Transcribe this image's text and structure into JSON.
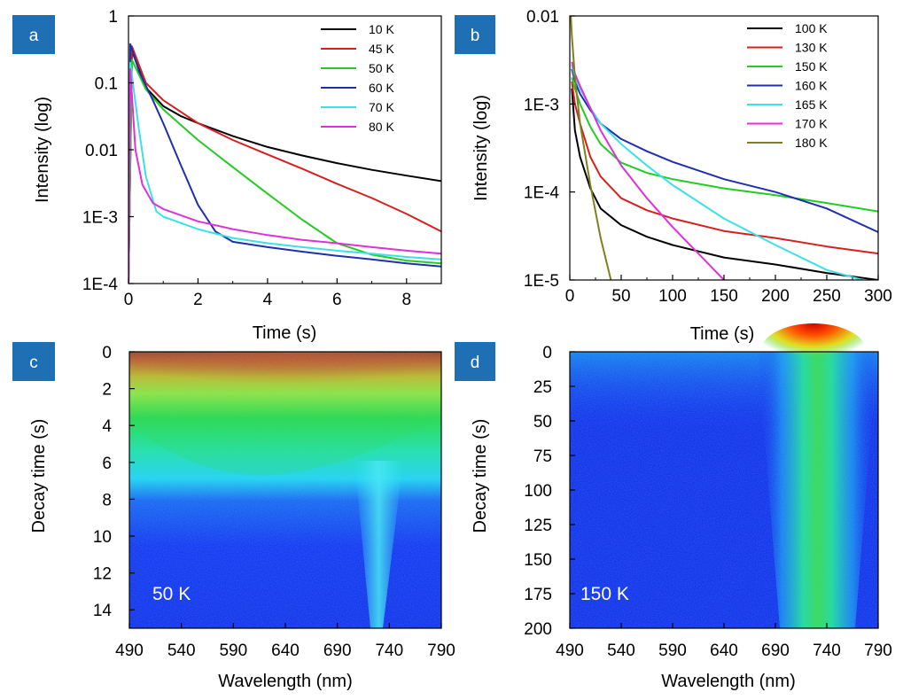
{
  "colors": {
    "badge": "#1f6fb5",
    "axis": "#000000"
  },
  "chart_data": [
    {
      "panel": "a",
      "type": "line",
      "xlabel": "Time (s)",
      "ylabel": "Intensity (log)",
      "xlim": [
        0,
        9
      ],
      "ylim": [
        0.0001,
        1
      ],
      "yscale": "log",
      "x_ticks": [
        "0",
        "2",
        "4",
        "6",
        "8"
      ],
      "y_ticks": [
        "1E-4",
        "1E-3",
        "0.01",
        "0.1",
        "1"
      ],
      "legend_position": "top-right",
      "series": [
        {
          "name": "10 K",
          "color": "#000000",
          "x": [
            0,
            0.1,
            0.5,
            1,
            1.5,
            2,
            3,
            4,
            5,
            6,
            7,
            8,
            9
          ],
          "y": [
            0.0001,
            0.3,
            0.085,
            0.045,
            0.032,
            0.025,
            0.016,
            0.011,
            0.0082,
            0.0063,
            0.005,
            0.0041,
            0.0034
          ]
        },
        {
          "name": "45 K",
          "color": "#d62020",
          "x": [
            0,
            0.1,
            0.5,
            1,
            2,
            3,
            4,
            5,
            6,
            7,
            8,
            9
          ],
          "y": [
            0.0001,
            0.35,
            0.1,
            0.055,
            0.025,
            0.014,
            0.0085,
            0.0052,
            0.0031,
            0.0019,
            0.0011,
            0.0006
          ]
        },
        {
          "name": "50 K",
          "color": "#22cc22",
          "x": [
            0,
            0.1,
            0.5,
            1,
            2,
            3,
            4,
            5,
            6,
            7,
            8,
            9
          ],
          "y": [
            0.0001,
            0.22,
            0.08,
            0.04,
            0.014,
            0.0055,
            0.0022,
            0.0009,
            0.0004,
            0.00027,
            0.00022,
            0.0002
          ]
        },
        {
          "name": "60 K",
          "color": "#1f2fb0",
          "x": [
            0,
            0.05,
            0.3,
            0.7,
            1,
            1.5,
            2,
            2.5,
            3,
            4,
            5,
            6,
            7,
            8,
            9
          ],
          "y": [
            0.0001,
            0.38,
            0.15,
            0.055,
            0.025,
            0.006,
            0.0015,
            0.0006,
            0.00042,
            0.00035,
            0.0003,
            0.00026,
            0.00023,
            0.0002,
            0.00018
          ]
        },
        {
          "name": "70 K",
          "color": "#3be0e8",
          "x": [
            0,
            0.05,
            0.3,
            0.5,
            0.8,
            1,
            2,
            3,
            4,
            5,
            6,
            7,
            8,
            9
          ],
          "y": [
            0.0001,
            0.2,
            0.02,
            0.004,
            0.0012,
            0.001,
            0.00065,
            0.00048,
            0.0004,
            0.00035,
            0.00031,
            0.00028,
            0.00025,
            0.00023
          ]
        },
        {
          "name": "80 K",
          "color": "#e030d8",
          "x": [
            0,
            0.05,
            0.2,
            0.4,
            0.7,
            1,
            2,
            3,
            4,
            5,
            6,
            7,
            8,
            9
          ],
          "y": [
            0.0001,
            0.16,
            0.01,
            0.003,
            0.0016,
            0.0013,
            0.00085,
            0.00065,
            0.00053,
            0.00045,
            0.0004,
            0.00035,
            0.00031,
            0.00028
          ]
        }
      ]
    },
    {
      "panel": "b",
      "type": "line",
      "xlabel": "Time (s)",
      "ylabel": "Intensity (log)",
      "xlim": [
        0,
        300
      ],
      "ylim": [
        1e-05,
        0.01
      ],
      "yscale": "log",
      "x_ticks": [
        "0",
        "50",
        "100",
        "150",
        "200",
        "250",
        "300"
      ],
      "y_ticks": [
        "1E-5",
        "1E-4",
        "1E-3",
        "0.01"
      ],
      "legend_position": "top-right",
      "series": [
        {
          "name": "100 K",
          "color": "#000000",
          "x": [
            2,
            5,
            10,
            20,
            30,
            50,
            75,
            100,
            150,
            200,
            250,
            300
          ],
          "y": [
            0.0015,
            0.0005,
            0.00025,
            0.00011,
            6.5e-05,
            4.2e-05,
            3.1e-05,
            2.5e-05,
            1.8e-05,
            1.5e-05,
            1.2e-05,
            1e-05
          ]
        },
        {
          "name": "130 K",
          "color": "#d62020",
          "x": [
            2,
            5,
            10,
            20,
            30,
            50,
            75,
            100,
            150,
            200,
            250,
            300
          ],
          "y": [
            0.0018,
            0.001,
            0.0006,
            0.00025,
            0.00015,
            8.5e-05,
            6.2e-05,
            5e-05,
            3.6e-05,
            3e-05,
            2.4e-05,
            2e-05
          ]
        },
        {
          "name": "150 K",
          "color": "#22cc22",
          "x": [
            2,
            5,
            10,
            20,
            30,
            50,
            75,
            100,
            150,
            200,
            250,
            300
          ],
          "y": [
            0.002,
            0.0015,
            0.001,
            0.00055,
            0.00035,
            0.000215,
            0.000165,
            0.00014,
            0.00011,
            9.2e-05,
            7.5e-05,
            6e-05
          ]
        },
        {
          "name": "160 K",
          "color": "#1f2fb0",
          "x": [
            2,
            5,
            10,
            20,
            30,
            50,
            75,
            100,
            150,
            200,
            250,
            300
          ],
          "y": [
            0.0025,
            0.0018,
            0.0013,
            0.00085,
            0.0006,
            0.0004,
            0.00029,
            0.00022,
            0.00014,
            0.0001,
            6.5e-05,
            3.5e-05
          ]
        },
        {
          "name": "165 K",
          "color": "#3be0e8",
          "x": [
            2,
            5,
            10,
            20,
            30,
            50,
            75,
            100,
            150,
            200,
            250,
            285
          ],
          "y": [
            0.0028,
            0.002,
            0.0015,
            0.0009,
            0.0006,
            0.00035,
            0.0002,
            0.00012,
            5e-05,
            2.5e-05,
            1.3e-05,
            1e-05
          ]
        },
        {
          "name": "170 K",
          "color": "#e030d8",
          "x": [
            2,
            5,
            10,
            20,
            30,
            50,
            75,
            100,
            125,
            150
          ],
          "y": [
            0.003,
            0.0022,
            0.0016,
            0.0009,
            0.0005,
            0.0002,
            8.5e-05,
            4e-05,
            2e-05,
            1e-05
          ]
        },
        {
          "name": "180 K",
          "color": "#808020",
          "x": [
            1,
            2,
            5,
            10,
            20,
            30,
            40
          ],
          "y": [
            0.01,
            0.006,
            0.002,
            0.0006,
            0.00012,
            3e-05,
            1e-05
          ]
        }
      ]
    },
    {
      "panel": "c",
      "type": "heatmap",
      "xlabel": "Wavelength (nm)",
      "ylabel": "Decay time (s)",
      "xlim": [
        490,
        790
      ],
      "ylim": [
        0,
        15
      ],
      "x_ticks": [
        "490",
        "540",
        "590",
        "640",
        "690",
        "740",
        "790"
      ],
      "y_ticks": [
        "0",
        "2",
        "4",
        "6",
        "8",
        "10",
        "12",
        "14"
      ],
      "annotation": "50 K"
    },
    {
      "panel": "d",
      "type": "heatmap",
      "xlabel": "Wavelength (nm)",
      "ylabel": "Decay time (s)",
      "xlim": [
        490,
        790
      ],
      "ylim": [
        0,
        200
      ],
      "x_ticks": [
        "490",
        "540",
        "590",
        "640",
        "690",
        "740",
        "790"
      ],
      "y_ticks": [
        "0",
        "25",
        "50",
        "75",
        "100",
        "125",
        "150",
        "175",
        "200"
      ],
      "annotation": "150 K"
    }
  ]
}
